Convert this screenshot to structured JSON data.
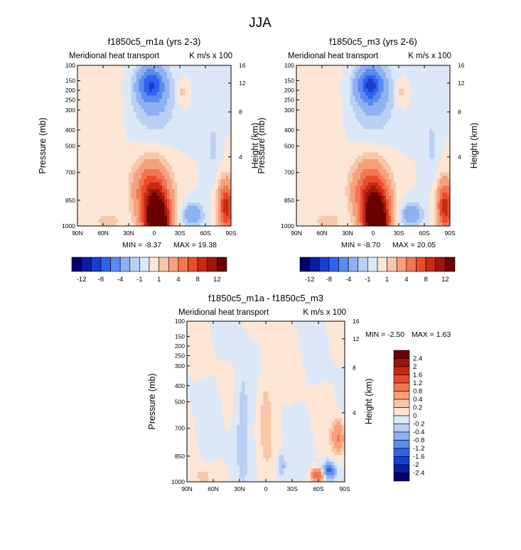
{
  "page_title": "JJA",
  "colors": {
    "palette_abs": [
      "#04006b",
      "#0a1fa0",
      "#1a3fd0",
      "#2e62f0",
      "#5b8af0",
      "#8fb0f2",
      "#b9d0f4",
      "#dce8f7",
      "#fde6d6",
      "#f8c6a8",
      "#f6a07c",
      "#f27652",
      "#ea4b2a",
      "#c82814",
      "#9e1608",
      "#6a0000"
    ],
    "palette_diff": [
      "#04006b",
      "#0a1fa0",
      "#1a3fd0",
      "#2e62f0",
      "#5b8af0",
      "#8fb0f2",
      "#b9d0f4",
      "#dce8f7",
      "#fde6d6",
      "#f8c6a8",
      "#f6a07c",
      "#f27652",
      "#ea4b2a",
      "#c82814",
      "#9e1608",
      "#6a0000"
    ]
  },
  "chart_data": [
    {
      "type": "heatmap",
      "title": "f1850c5_m1a (yrs 2-3)",
      "subtitle_left": "Meridional heat transport",
      "subtitle_right": "K m/s x 100",
      "ylabel": "Pressure (mb)",
      "ylabel_right": "Height (km)",
      "x_ticks": [
        "90N",
        "60N",
        "30N",
        "0",
        "30S",
        "60S",
        "90S"
      ],
      "y_ticks": [
        "100",
        "150",
        "200",
        "250",
        "300",
        "400",
        "500",
        "700",
        "850",
        "1000"
      ],
      "y_right_ticks": [
        "16",
        "12",
        "8",
        "4"
      ],
      "min_label": "MIN = -8.37",
      "max_label": "MAX = 19.38",
      "min": -8.37,
      "max": 19.38,
      "colorbar": {
        "orientation": "horizontal",
        "labels": [
          "-12",
          "-8",
          "-4",
          "-1",
          "1",
          "4",
          "8",
          "12"
        ],
        "levels": [
          -14,
          -12,
          -10,
          -8,
          -6,
          -4,
          -2,
          -1,
          0,
          1,
          2,
          4,
          6,
          8,
          10,
          12,
          14
        ]
      }
    },
    {
      "type": "heatmap",
      "title": "f1850c5_m3 (yrs 2-6)",
      "subtitle_left": "Meridional heat transport",
      "subtitle_right": "K m/s x 100",
      "ylabel": "Pressure (mb)",
      "ylabel_right": "Height (km)",
      "x_ticks": [
        "90N",
        "60N",
        "30N",
        "0",
        "30S",
        "60S",
        "90S"
      ],
      "y_ticks": [
        "100",
        "150",
        "200",
        "250",
        "300",
        "400",
        "500",
        "700",
        "850",
        "1000"
      ],
      "y_right_ticks": [
        "16",
        "12",
        "8",
        "4"
      ],
      "min_label": "MIN = -8.70",
      "max_label": "MAX = 20.05",
      "min": -8.7,
      "max": 20.05,
      "colorbar": {
        "orientation": "horizontal",
        "labels": [
          "-12",
          "-8",
          "-4",
          "-1",
          "1",
          "4",
          "8",
          "12"
        ],
        "levels": [
          -14,
          -12,
          -10,
          -8,
          -6,
          -4,
          -2,
          -1,
          0,
          1,
          2,
          4,
          6,
          8,
          10,
          12,
          14
        ]
      }
    },
    {
      "type": "heatmap",
      "title": "f1850c5_m1a - f1850c5_m3",
      "subtitle_left": "Meridional heat transport",
      "subtitle_right": "K m/s x 100",
      "ylabel": "Pressure (mb)",
      "ylabel_right": "Height (km)",
      "x_ticks": [
        "90N",
        "60N",
        "30N",
        "0",
        "30S",
        "60S",
        "90S"
      ],
      "y_ticks": [
        "100",
        "150",
        "200",
        "250",
        "300",
        "400",
        "500",
        "700",
        "850",
        "1000"
      ],
      "y_right_ticks": [
        "16",
        "12",
        "8",
        "4"
      ],
      "min_label": "MIN = -2.50",
      "max_label": "MAX = 1.63",
      "min": -2.5,
      "max": 1.63,
      "colorbar": {
        "orientation": "vertical",
        "labels": [
          "2.4",
          "2",
          "1.6",
          "1.2",
          "0.8",
          "0.4",
          "0.2",
          "0",
          "-0.2",
          "-0.4",
          "-0.8",
          "-1.2",
          "-1.6",
          "-2",
          "-2.4"
        ],
        "levels": [
          2.8,
          2.4,
          2,
          1.6,
          1.2,
          0.8,
          0.4,
          0.2,
          0,
          -0.2,
          -0.4,
          -0.8,
          -1.2,
          -1.6,
          -2,
          -2.4,
          -2.8
        ]
      }
    }
  ]
}
